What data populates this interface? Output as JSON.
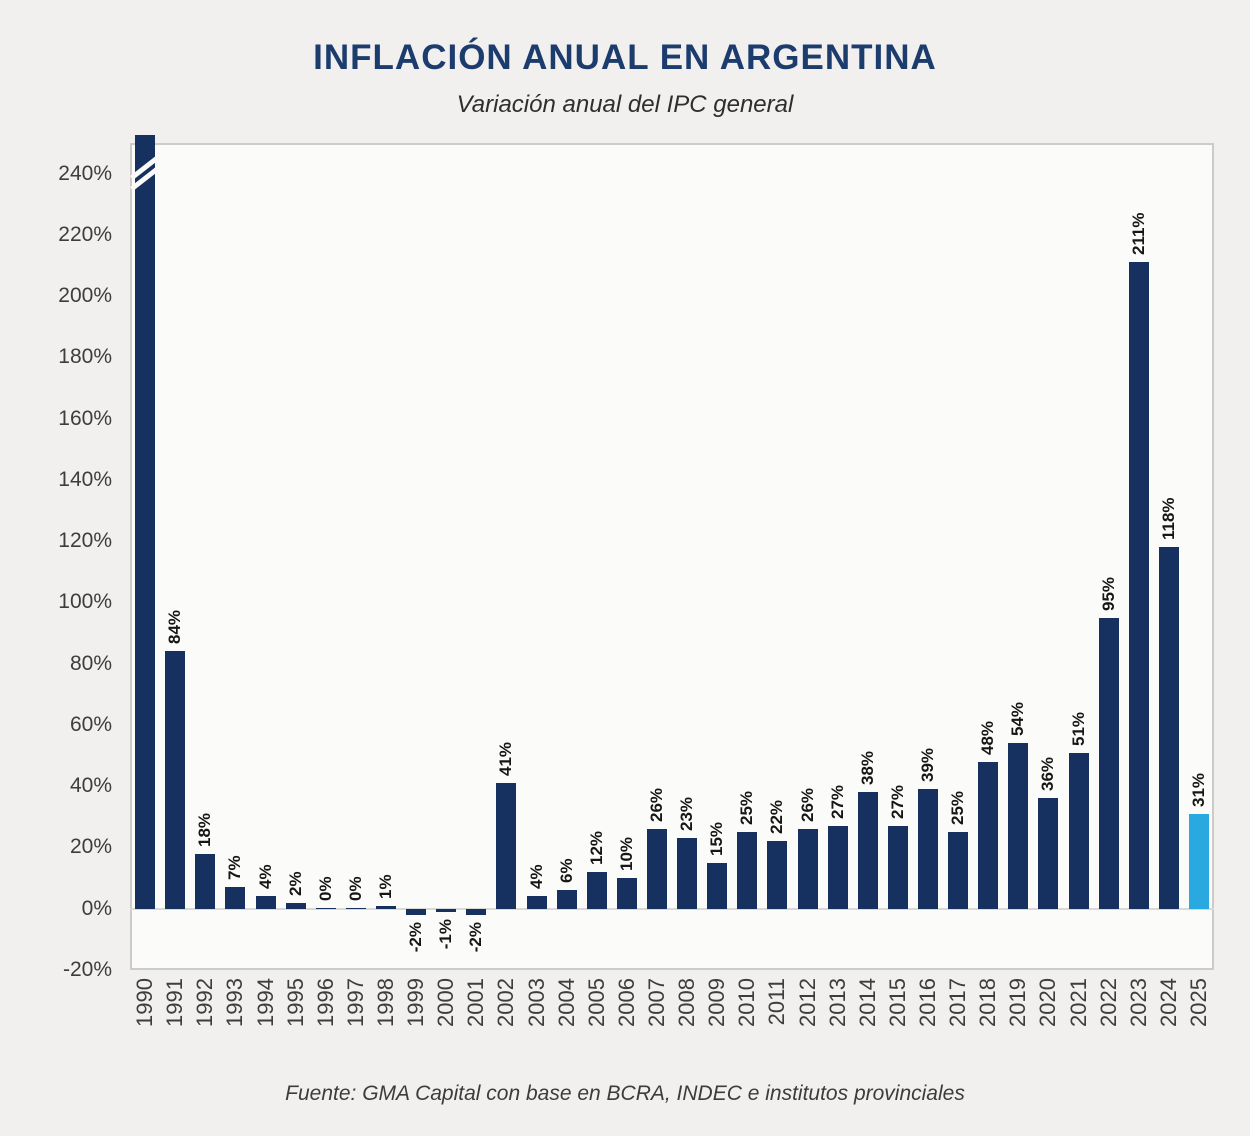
{
  "page": {
    "title": "INFLACIÓN ANUAL EN ARGENTINA",
    "subtitle": "Variación anual del IPC general",
    "source": "Fuente: GMA Capital con base en BCRA, INDEC e institutos provinciales"
  },
  "colors": {
    "bar": "#16305f",
    "highlight_bar": "#29a9e0",
    "title": "#1d3c6e",
    "axis_text": "#3d3d3d",
    "value_label_text": "#161616",
    "plot_border": "#cbcbc8",
    "plot_background": "#fbfbf9",
    "page_background": "#f1f0ee",
    "baseline": "#d9d9d5"
  },
  "chart_data": {
    "type": "bar",
    "title": "INFLACIÓN ANUAL EN ARGENTINA",
    "subtitle": "Variación anual del IPC general",
    "source": "Fuente: GMA Capital con base en BCRA, INDEC e institutos provinciales",
    "xlabel": "",
    "ylabel": "",
    "ylim": [
      -20,
      240
    ],
    "yticks": [
      240,
      220,
      200,
      180,
      160,
      140,
      120,
      100,
      80,
      60,
      40,
      20,
      0,
      -20
    ],
    "ytick_suffix": "%",
    "grid": false,
    "legend": "none",
    "clip_note": "1990 bar exceeds axis range and is drawn clipped to plot top with diagonal break marks; no value label shown",
    "bars": [
      {
        "year": "1990",
        "value": null,
        "label": "",
        "clipped": true
      },
      {
        "year": "1991",
        "value": 84,
        "label": "84%"
      },
      {
        "year": "1992",
        "value": 18,
        "label": "18%"
      },
      {
        "year": "1993",
        "value": 7,
        "label": "7%"
      },
      {
        "year": "1994",
        "value": 4,
        "label": "4%"
      },
      {
        "year": "1995",
        "value": 2,
        "label": "2%"
      },
      {
        "year": "1996",
        "value": 0,
        "label": "0%"
      },
      {
        "year": "1997",
        "value": 0,
        "label": "0%"
      },
      {
        "year": "1998",
        "value": 1,
        "label": "1%"
      },
      {
        "year": "1999",
        "value": -2,
        "label": "-2%"
      },
      {
        "year": "2000",
        "value": -1,
        "label": "-1%"
      },
      {
        "year": "2001",
        "value": -2,
        "label": "-2%"
      },
      {
        "year": "2002",
        "value": 41,
        "label": "41%"
      },
      {
        "year": "2003",
        "value": 4,
        "label": "4%"
      },
      {
        "year": "2004",
        "value": 6,
        "label": "6%"
      },
      {
        "year": "2005",
        "value": 12,
        "label": "12%"
      },
      {
        "year": "2006",
        "value": 10,
        "label": "10%"
      },
      {
        "year": "2007",
        "value": 26,
        "label": "26%"
      },
      {
        "year": "2008",
        "value": 23,
        "label": "23%"
      },
      {
        "year": "2009",
        "value": 15,
        "label": "15%"
      },
      {
        "year": "2010",
        "value": 25,
        "label": "25%"
      },
      {
        "year": "2011",
        "value": 22,
        "label": "22%"
      },
      {
        "year": "2012",
        "value": 26,
        "label": "26%"
      },
      {
        "year": "2013",
        "value": 27,
        "label": "27%"
      },
      {
        "year": "2014",
        "value": 38,
        "label": "38%"
      },
      {
        "year": "2015",
        "value": 27,
        "label": "27%"
      },
      {
        "year": "2016",
        "value": 39,
        "label": "39%"
      },
      {
        "year": "2017",
        "value": 25,
        "label": "25%"
      },
      {
        "year": "2018",
        "value": 48,
        "label": "48%"
      },
      {
        "year": "2019",
        "value": 54,
        "label": "54%"
      },
      {
        "year": "2020",
        "value": 36,
        "label": "36%"
      },
      {
        "year": "2021",
        "value": 51,
        "label": "51%"
      },
      {
        "year": "2022",
        "value": 95,
        "label": "95%"
      },
      {
        "year": "2023",
        "value": 211,
        "label": "211%"
      },
      {
        "year": "2024",
        "value": 118,
        "label": "118%"
      },
      {
        "year": "2025",
        "value": 31,
        "label": "31%",
        "highlight": true
      }
    ]
  }
}
